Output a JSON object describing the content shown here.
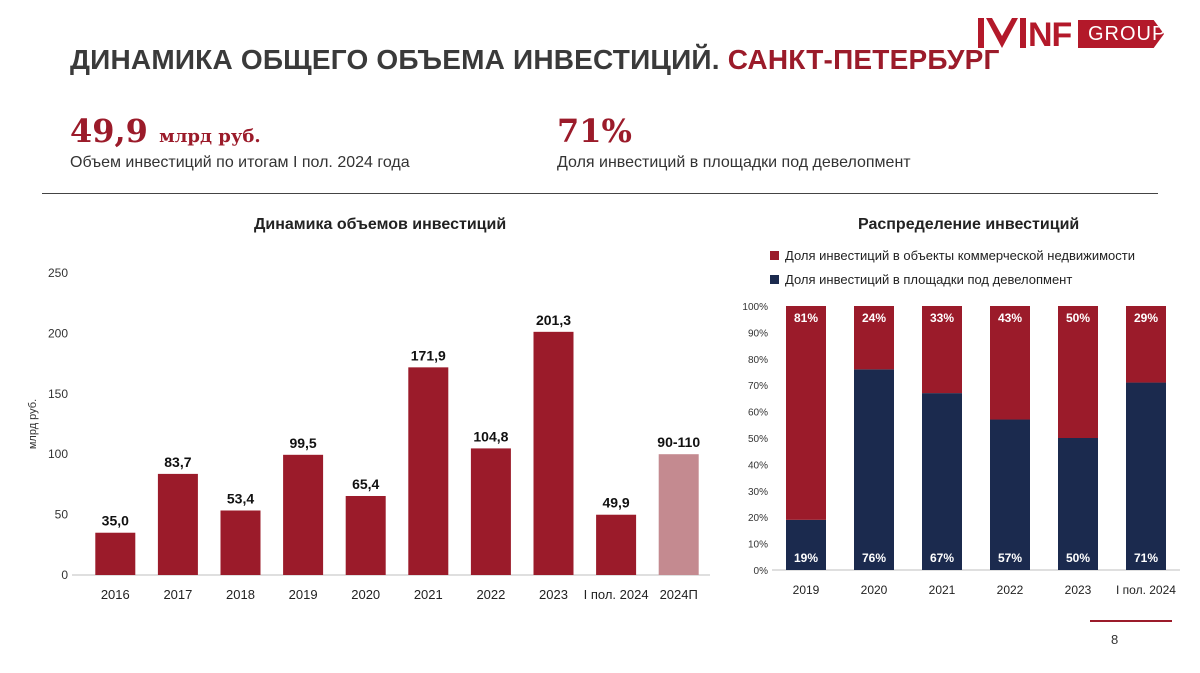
{
  "header": {
    "title_main": "ДИНАМИКА ОБЩЕГО ОБЪЕМА ИНВЕСТИЦИЙ.",
    "title_city": "САНКТ-ПЕТЕРБУРГ",
    "logo_word": "NF",
    "logo_tag": "GROUP"
  },
  "kpis": [
    {
      "value": "49,9",
      "unit": "млрд руб.",
      "desc": "Объем инвестиций по итогам I пол. 2024 года"
    },
    {
      "value": "71%",
      "unit": "",
      "desc": "Доля инвестиций в площадки под девелопмент"
    }
  ],
  "colors": {
    "brand": "#9b1b2a",
    "forecast": "#c48a90",
    "navy": "#1b2a4e"
  },
  "chart_data": [
    {
      "type": "bar",
      "title": "Динамика объемов инвестиций",
      "ylabel": "млрд руб.",
      "ylim": [
        0,
        250
      ],
      "yticks": [
        0,
        50,
        100,
        150,
        200,
        250
      ],
      "grid": false,
      "categories": [
        "2016",
        "2017",
        "2018",
        "2019",
        "2020",
        "2021",
        "2022",
        "2023",
        "I пол. 2024",
        "2024П"
      ],
      "values": [
        35.0,
        83.7,
        53.4,
        99.5,
        65.4,
        171.9,
        104.8,
        201.3,
        49.9,
        100
      ],
      "labels": [
        "35,0",
        "83,7",
        "53,4",
        "99,5",
        "65,4",
        "171,9",
        "104,8",
        "201,3",
        "49,9",
        "90-110"
      ],
      "forecast_index": 9
    },
    {
      "type": "bar",
      "stacked": true,
      "title": "Распределение инвестиций",
      "ylim": [
        0,
        100
      ],
      "yticks": [
        "0%",
        "10%",
        "20%",
        "30%",
        "40%",
        "50%",
        "60%",
        "70%",
        "80%",
        "90%",
        "100%"
      ],
      "legend_position": "top",
      "categories": [
        "2019",
        "2020",
        "2021",
        "2022",
        "2023",
        "I пол. 2024"
      ],
      "series": [
        {
          "name": "Доля инвестиций в объекты коммерческой недвижимости",
          "values": [
            81,
            24,
            33,
            43,
            50,
            29
          ],
          "labels": [
            "81%",
            "24%",
            "33%",
            "43%",
            "50%",
            "29%"
          ]
        },
        {
          "name": "Доля инвестиций в площадки под девелопмент",
          "values": [
            19,
            76,
            67,
            57,
            50,
            71
          ],
          "labels": [
            "19%",
            "76%",
            "67%",
            "57%",
            "50%",
            "71%"
          ]
        }
      ]
    }
  ],
  "footer": {
    "page_number": "8"
  }
}
